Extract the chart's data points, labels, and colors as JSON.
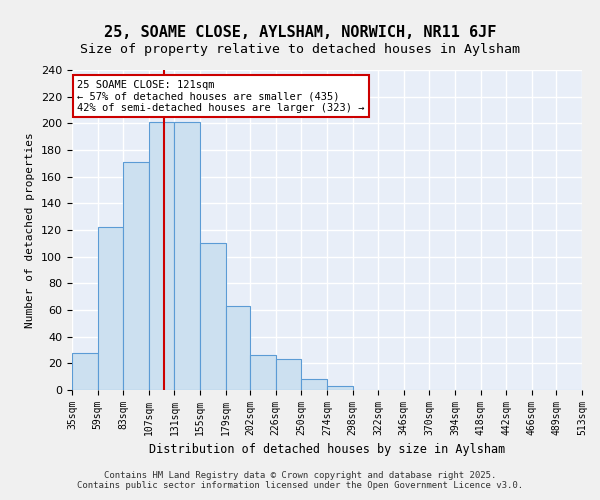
{
  "title1": "25, SOAME CLOSE, AYLSHAM, NORWICH, NR11 6JF",
  "title2": "Size of property relative to detached houses in Aylsham",
  "xlabel": "Distribution of detached houses by size in Aylsham",
  "ylabel": "Number of detached properties",
  "bin_labels": [
    "35sqm",
    "59sqm",
    "83sqm",
    "107sqm",
    "131sqm",
    "155sqm",
    "179sqm",
    "202sqm",
    "226sqm",
    "250sqm",
    "274sqm",
    "298sqm",
    "322sqm",
    "346sqm",
    "370sqm",
    "394sqm",
    "418sqm",
    "442sqm",
    "466sqm",
    "489sqm",
    "513sqm"
  ],
  "bar_values": [
    28,
    122,
    171,
    201,
    201,
    110,
    63,
    26,
    23,
    8,
    3,
    0,
    0,
    0,
    0,
    0,
    0,
    0,
    0,
    0
  ],
  "bin_edges_num": [
    35,
    59,
    83,
    107,
    131,
    155,
    179,
    202,
    226,
    250,
    274,
    298,
    322,
    346,
    370,
    394,
    418,
    442,
    466,
    489,
    513
  ],
  "property_size": 121,
  "property_label": "25 SOAME CLOSE: 121sqm",
  "annotation_line1": "25 SOAME CLOSE: 121sqm",
  "annotation_line2": "← 57% of detached houses are smaller (435)",
  "annotation_line3": "42% of semi-detached houses are larger (323) →",
  "bar_color": "#cce0f0",
  "bar_edge_color": "#5b9bd5",
  "vline_color": "#cc0000",
  "annotation_box_edge": "#cc0000",
  "background_color": "#e8eef8",
  "grid_color": "#ffffff",
  "ylim": [
    0,
    240
  ],
  "yticks": [
    0,
    20,
    40,
    60,
    80,
    100,
    120,
    140,
    160,
    180,
    200,
    220,
    240
  ],
  "footer": "Contains HM Land Registry data © Crown copyright and database right 2025.\nContains public sector information licensed under the Open Government Licence v3.0."
}
